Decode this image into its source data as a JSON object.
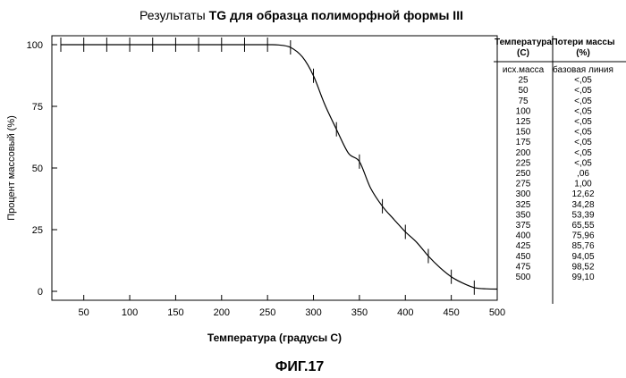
{
  "chart_data": {
    "type": "line",
    "title_plain": "Результаты ",
    "title_bold": "TG для образца полиморфной формы III",
    "xlabel": "Температура (градусы С)",
    "ylabel": "Процент массовый (%)",
    "xlim": [
      25,
      500
    ],
    "ylim": [
      0,
      100
    ],
    "xticks": [
      50,
      100,
      150,
      200,
      250,
      300,
      350,
      400,
      450,
      500
    ],
    "yticks": [
      0,
      25,
      50,
      75,
      100
    ],
    "series": [
      {
        "x": [
          25,
          50,
          75,
          100,
          125,
          150,
          175,
          200,
          225,
          250,
          262,
          275,
          288,
          300,
          312,
          325,
          338,
          350,
          362,
          375,
          388,
          400,
          412,
          425,
          438,
          450,
          462,
          475,
          488,
          500
        ],
        "y": [
          100,
          100,
          100,
          100,
          100,
          100,
          100,
          100,
          100,
          100,
          99.9,
          98.9,
          95,
          87.4,
          76,
          65.7,
          56,
          52.6,
          42,
          34.5,
          29,
          24.1,
          20,
          14.3,
          9.5,
          5.9,
          3.4,
          1.5,
          1.0,
          0.9
        ]
      }
    ],
    "error_bars_x": [
      25,
      50,
      75,
      100,
      125,
      150,
      175,
      200,
      225,
      250,
      275,
      300,
      325,
      350,
      375,
      400,
      425,
      450,
      475,
      500
    ],
    "grid": false,
    "legend": "none"
  },
  "table": {
    "header_temp": [
      "Температура",
      "(С)"
    ],
    "header_loss": [
      "Потери массы",
      "(%)"
    ],
    "rows": [
      [
        "исх.масса",
        "базовая линия"
      ],
      [
        "25",
        "<,05"
      ],
      [
        "50",
        "<,05"
      ],
      [
        "75",
        "<,05"
      ],
      [
        "100",
        "<,05"
      ],
      [
        "125",
        "<,05"
      ],
      [
        "150",
        "<,05"
      ],
      [
        "175",
        "<,05"
      ],
      [
        "200",
        "<,05"
      ],
      [
        "225",
        "<,05"
      ],
      [
        "250",
        ",06"
      ],
      [
        "275",
        "1,00"
      ],
      [
        "300",
        "12,62"
      ],
      [
        "325",
        "34,28"
      ],
      [
        "350",
        "53,39"
      ],
      [
        "375",
        "65,55"
      ],
      [
        "400",
        "75,96"
      ],
      [
        "425",
        "85,76"
      ],
      [
        "450",
        "94,05"
      ],
      [
        "475",
        "98,52"
      ],
      [
        "500",
        "99,10"
      ]
    ]
  },
  "figure_label": "ФИГ.17"
}
